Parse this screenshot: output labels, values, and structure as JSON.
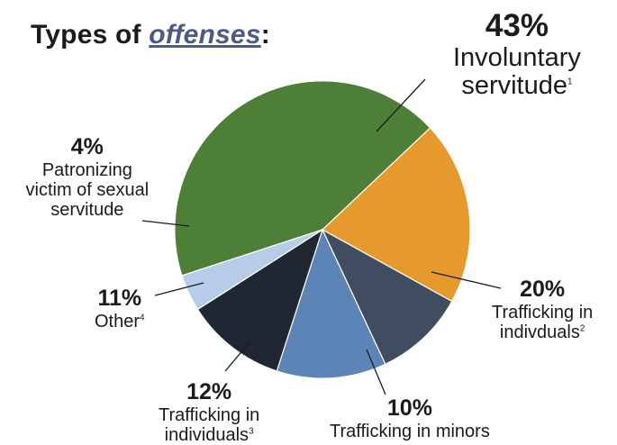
{
  "title": {
    "prefix": "Types of ",
    "emphasis": "offenses",
    "suffix": ":"
  },
  "chart_data": {
    "type": "pie",
    "title": "Types of offenses:",
    "slices": [
      {
        "pct": "43%",
        "value": 43,
        "lines": [
          "Involuntary",
          "servitude"
        ],
        "sup": "1",
        "color": "#4d7f37"
      },
      {
        "pct": "20%",
        "value": 20,
        "lines": [
          "Trafficking in",
          "indivduals"
        ],
        "sup": "2",
        "color": "#e79a2c"
      },
      {
        "pct": "10%",
        "value": 10,
        "lines": [
          "Trafficking in minors"
        ],
        "sup": "",
        "color": "#404d61"
      },
      {
        "pct": "12%",
        "value": 12,
        "lines": [
          "Trafficking in",
          "individuals"
        ],
        "sup": "3",
        "color": "#5c84b6"
      },
      {
        "pct": "11%",
        "value": 11,
        "lines": [
          "Other"
        ],
        "sup": "4",
        "color": "#202733"
      },
      {
        "pct": "4%",
        "value": 4,
        "lines": [
          "Patronizing",
          "victim of sexual",
          "servitude"
        ],
        "sup": "",
        "color": "#b6cce8"
      }
    ]
  }
}
